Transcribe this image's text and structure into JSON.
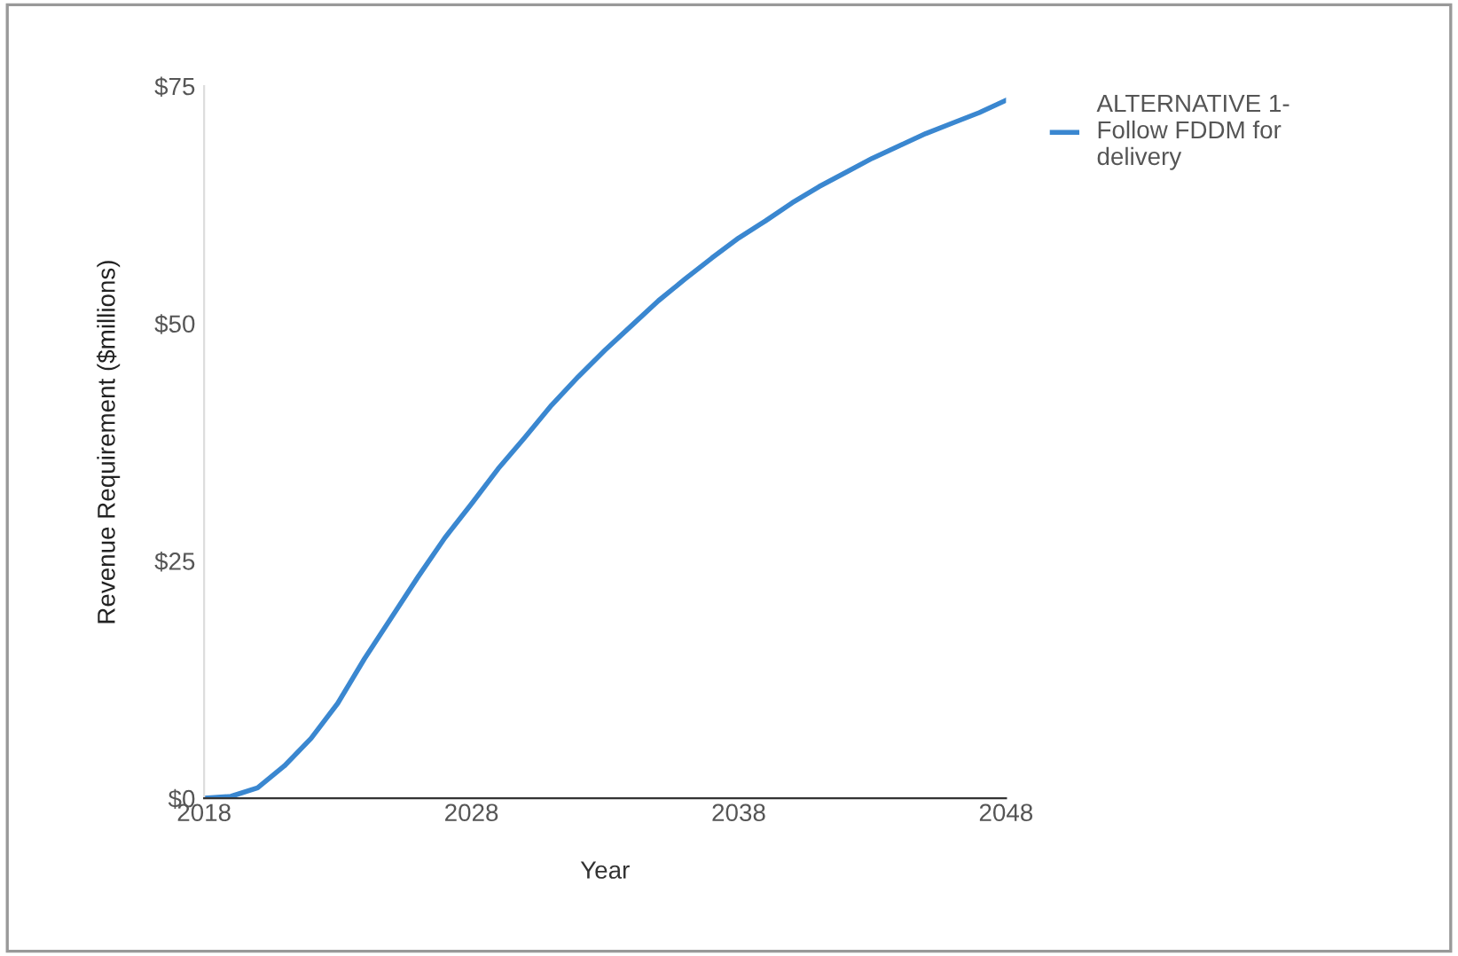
{
  "chart_data": {
    "type": "line",
    "xlabel": "Year",
    "ylabel": "Revenue Requirement ($millions)",
    "x": [
      2018,
      2019,
      2020,
      2021,
      2022,
      2023,
      2024,
      2025,
      2026,
      2027,
      2028,
      2029,
      2030,
      2031,
      2032,
      2033,
      2034,
      2035,
      2036,
      2037,
      2038,
      2039,
      2040,
      2041,
      2042,
      2043,
      2044,
      2045,
      2046,
      2047,
      2048
    ],
    "series": [
      {
        "name": "ALTERNATIVE 1-\nFollow FDDM for\ndelivery",
        "color": "#3a87d0",
        "values": [
          0,
          0.2,
          1.1,
          3.4,
          6.3,
          10,
          14.7,
          19,
          23.3,
          27.4,
          31,
          34.7,
          38,
          41.4,
          44.4,
          47.2,
          49.8,
          52.4,
          54.7,
          56.9,
          59,
          60.8,
          62.7,
          64.4,
          65.9,
          67.4,
          68.7,
          70,
          71.1,
          72.2,
          73.5
        ]
      }
    ],
    "xlim": [
      2018,
      2048
    ],
    "xticks": [
      2018,
      2028,
      2038,
      2048
    ],
    "ylim": [
      0,
      75
    ],
    "yticks": [
      {
        "value": 0,
        "label": "$0"
      },
      {
        "value": 25,
        "label": "$25"
      },
      {
        "value": 50,
        "label": "$50"
      },
      {
        "value": 75,
        "label": "$75"
      }
    ],
    "grid": false,
    "legend": "top right",
    "marker": "none",
    "line_style": "solid"
  }
}
